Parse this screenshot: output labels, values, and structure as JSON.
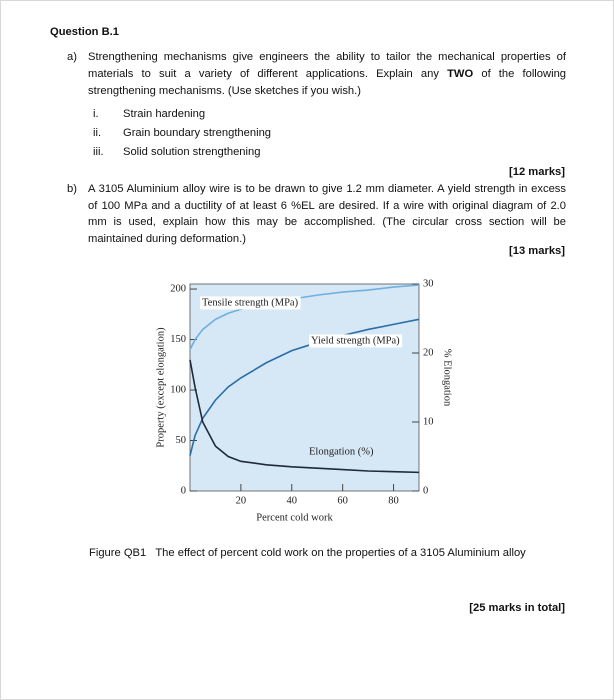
{
  "question": {
    "title": "Question B.1",
    "part_a": {
      "label": "a)",
      "text_before": "Strengthening mechanisms give engineers the ability to tailor the mechanical properties of materials to suit a variety of different applications. Explain any",
      "emphasis": "TWO",
      "text_after": "of the following strengthening mechanisms. (Use sketches if you wish.)",
      "items": [
        {
          "num": "i.",
          "text": "Strain hardening"
        },
        {
          "num": "ii.",
          "text": "Grain boundary strengthening"
        },
        {
          "num": "iii.",
          "text": "Solid solution strengthening"
        }
      ],
      "marks": "[12 marks]"
    },
    "part_b": {
      "label": "b)",
      "text": "A 3105 Aluminium alloy wire is to be drawn to give 1.2 mm diameter. A yield strength in excess of 100 MPa and a ductility of at least 6 %EL are desired. If a wire with original diagram of 2.0 mm is used, explain how this may be accomplished. (The circular cross section will be maintained during deformation.)",
      "marks": "[13 marks]"
    }
  },
  "chart_data": {
    "type": "line",
    "xlabel": "Percent cold work",
    "ylabel": "Property (except elongation)",
    "y2label": "% Elongation",
    "x": [
      0,
      2,
      5,
      10,
      15,
      20,
      30,
      40,
      50,
      60,
      70,
      80,
      90
    ],
    "series": [
      {
        "name": "Tensile strength (MPa)",
        "color": "#6fb0e0",
        "values": [
          140,
          150,
          160,
          170,
          176,
          180,
          186,
          190,
          194,
          197,
          199,
          202,
          204
        ]
      },
      {
        "name": "Yield strength (MPa)",
        "color": "#2b6ea6",
        "values": [
          35,
          55,
          72,
          90,
          103,
          112,
          127,
          139,
          147,
          154,
          160,
          165,
          170
        ]
      },
      {
        "name": "Elongation (%)",
        "color": "#1e2a38",
        "axis": "y2",
        "values": [
          19,
          15,
          10,
          6.5,
          5,
          4.3,
          3.8,
          3.5,
          3.3,
          3.1,
          2.9,
          2.8,
          2.7
        ]
      }
    ],
    "xlim": [
      0,
      90
    ],
    "xticks": [
      20,
      40,
      60,
      80
    ],
    "ylim": [
      0,
      205
    ],
    "yticks": [
      0,
      50,
      100,
      150,
      200
    ],
    "y2lim": [
      0,
      30
    ],
    "y2ticks": [
      0,
      10,
      20,
      30
    ],
    "background": "#d6e7f6"
  },
  "figure_caption": {
    "label": "Figure QB1",
    "text": "The effect of percent cold work on the properties of a 3105 Aluminium alloy"
  },
  "total": "[25 marks in total]"
}
